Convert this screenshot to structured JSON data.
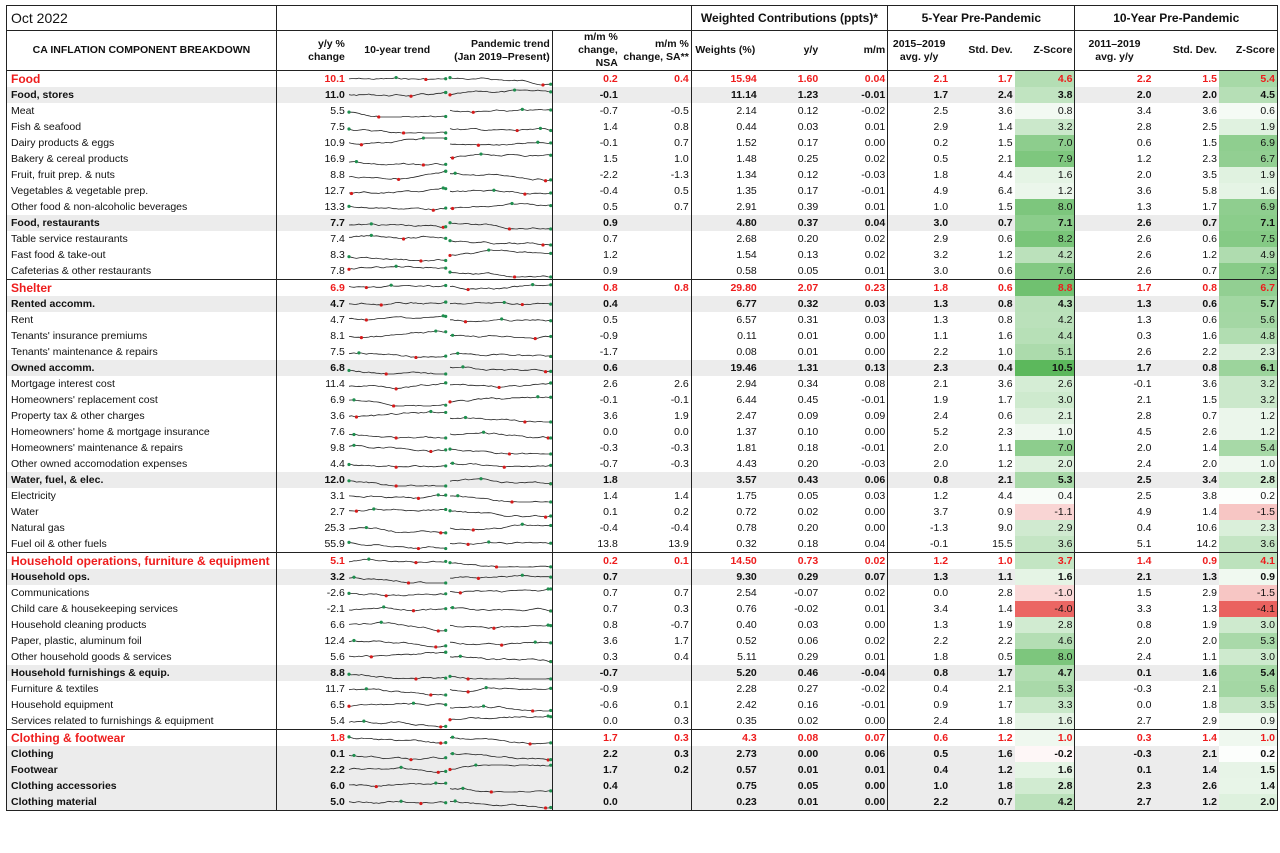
{
  "title": "Oct 2022",
  "header_groups": {
    "weighted": "Weighted Contributions (ppts)*",
    "five_year": "5-Year Pre-Pandemic",
    "ten_year": "10-Year Pre-Pandemic"
  },
  "columns": {
    "component": "CA INFLATION COMPONENT BREAKDOWN",
    "yy": "y/y % change",
    "trend10": "10-year trend",
    "trend_pandemic": "Pandemic trend (Jan 2019–Present)",
    "mm_nsa": "m/m % change, NSA",
    "mm_sa": "m/m % change, SA**",
    "weights": "Weights (%)",
    "wc_yy": "y/y",
    "wc_mm": "m/m",
    "avg5": "2015–2019 avg. y/y",
    "sd5": "Std. Dev.",
    "z5": "Z-Score",
    "avg10": "2011–2019 avg. y/y",
    "sd10": "Std. Dev.",
    "z10": "Z-Score"
  },
  "rows": [
    {
      "label": "Food",
      "level": 0,
      "v": [
        "10.1",
        "0.2",
        "0.4",
        "15.94",
        "1.60",
        "0.04",
        "2.1",
        "1.7",
        "4.6",
        "2.2",
        "1.5",
        "5.4"
      ]
    },
    {
      "label": "Food, stores",
      "level": 1,
      "v": [
        "11.0",
        "-0.1",
        "",
        "11.14",
        "1.23",
        "-0.01",
        "1.7",
        "2.4",
        "3.8",
        "2.0",
        "2.0",
        "4.5"
      ]
    },
    {
      "label": "Meat",
      "level": 2,
      "v": [
        "5.5",
        "-0.7",
        "-0.5",
        "2.14",
        "0.12",
        "-0.02",
        "2.5",
        "3.6",
        "0.8",
        "3.4",
        "3.6",
        "0.6"
      ]
    },
    {
      "label": "Fish & seafood",
      "level": 2,
      "v": [
        "7.5",
        "1.4",
        "0.8",
        "0.44",
        "0.03",
        "0.01",
        "2.9",
        "1.4",
        "3.2",
        "2.8",
        "2.5",
        "1.9"
      ]
    },
    {
      "label": "Dairy products & eggs",
      "level": 2,
      "v": [
        "10.9",
        "-0.1",
        "0.7",
        "1.52",
        "0.17",
        "0.00",
        "0.2",
        "1.5",
        "7.0",
        "0.6",
        "1.5",
        "6.9"
      ]
    },
    {
      "label": "Bakery & cereal products",
      "level": 2,
      "v": [
        "16.9",
        "1.5",
        "1.0",
        "1.48",
        "0.25",
        "0.02",
        "0.5",
        "2.1",
        "7.9",
        "1.2",
        "2.3",
        "6.7"
      ]
    },
    {
      "label": "Fruit, fruit prep. & nuts",
      "level": 2,
      "v": [
        "8.8",
        "-2.2",
        "-1.3",
        "1.34",
        "0.12",
        "-0.03",
        "1.8",
        "4.4",
        "1.6",
        "2.0",
        "3.5",
        "1.9"
      ]
    },
    {
      "label": "Vegetables & vegetable prep.",
      "level": 2,
      "v": [
        "12.7",
        "-0.4",
        "0.5",
        "1.35",
        "0.17",
        "-0.01",
        "4.9",
        "6.4",
        "1.2",
        "3.6",
        "5.8",
        "1.6"
      ]
    },
    {
      "label": "Other food & non-alcoholic beverages",
      "level": 2,
      "v": [
        "13.3",
        "0.5",
        "0.7",
        "2.91",
        "0.39",
        "0.01",
        "1.0",
        "1.5",
        "8.0",
        "1.3",
        "1.7",
        "6.9"
      ]
    },
    {
      "label": "Food, restaurants",
      "level": 1,
      "v": [
        "7.7",
        "0.9",
        "",
        "4.80",
        "0.37",
        "0.04",
        "3.0",
        "0.7",
        "7.1",
        "2.6",
        "0.7",
        "7.1"
      ]
    },
    {
      "label": "Table service restaurants",
      "level": 2,
      "v": [
        "7.4",
        "0.7",
        "",
        "2.68",
        "0.20",
        "0.02",
        "2.9",
        "0.6",
        "8.2",
        "2.6",
        "0.6",
        "7.5"
      ]
    },
    {
      "label": "Fast food & take-out",
      "level": 2,
      "v": [
        "8.3",
        "1.2",
        "",
        "1.54",
        "0.13",
        "0.02",
        "3.2",
        "1.2",
        "4.2",
        "2.6",
        "1.2",
        "4.9"
      ]
    },
    {
      "label": "Cafeterias & other restaurants",
      "level": 2,
      "v": [
        "7.8",
        "0.9",
        "",
        "0.58",
        "0.05",
        "0.01",
        "3.0",
        "0.6",
        "7.6",
        "2.6",
        "0.7",
        "7.3"
      ]
    },
    {
      "label": "Shelter",
      "level": 0,
      "v": [
        "6.9",
        "0.8",
        "0.8",
        "29.80",
        "2.07",
        "0.23",
        "1.8",
        "0.6",
        "8.8",
        "1.7",
        "0.8",
        "6.7"
      ]
    },
    {
      "label": "Rented accomm.",
      "level": 1,
      "v": [
        "4.7",
        "0.4",
        "",
        "6.77",
        "0.32",
        "0.03",
        "1.3",
        "0.8",
        "4.3",
        "1.3",
        "0.6",
        "5.7"
      ]
    },
    {
      "label": "Rent",
      "level": 2,
      "v": [
        "4.7",
        "0.5",
        "",
        "6.57",
        "0.31",
        "0.03",
        "1.3",
        "0.8",
        "4.2",
        "1.3",
        "0.6",
        "5.6"
      ]
    },
    {
      "label": "Tenants' insurance premiums",
      "level": 2,
      "v": [
        "8.1",
        "-0.9",
        "",
        "0.11",
        "0.01",
        "0.00",
        "1.1",
        "1.6",
        "4.4",
        "0.3",
        "1.6",
        "4.8"
      ]
    },
    {
      "label": "Tenants' maintenance & repairs",
      "level": 2,
      "v": [
        "7.5",
        "-1.7",
        "",
        "0.08",
        "0.01",
        "0.00",
        "2.2",
        "1.0",
        "5.1",
        "2.6",
        "2.2",
        "2.3"
      ]
    },
    {
      "label": "Owned accomm.",
      "level": 1,
      "v": [
        "6.8",
        "0.6",
        "",
        "19.46",
        "1.31",
        "0.13",
        "2.3",
        "0.4",
        "10.5",
        "1.7",
        "0.8",
        "6.1"
      ]
    },
    {
      "label": "Mortgage interest cost",
      "level": 2,
      "v": [
        "11.4",
        "2.6",
        "2.6",
        "2.94",
        "0.34",
        "0.08",
        "2.1",
        "3.6",
        "2.6",
        "-0.1",
        "3.6",
        "3.2"
      ]
    },
    {
      "label": "Homeowners' replacement cost",
      "level": 2,
      "v": [
        "6.9",
        "-0.1",
        "-0.1",
        "6.44",
        "0.45",
        "-0.01",
        "1.9",
        "1.7",
        "3.0",
        "2.1",
        "1.5",
        "3.2"
      ]
    },
    {
      "label": "Property tax & other charges",
      "level": 2,
      "v": [
        "3.6",
        "3.6",
        "1.9",
        "2.47",
        "0.09",
        "0.09",
        "2.4",
        "0.6",
        "2.1",
        "2.8",
        "0.7",
        "1.2"
      ]
    },
    {
      "label": "Homeowners' home & mortgage insurance",
      "level": 2,
      "v": [
        "7.6",
        "0.0",
        "0.0",
        "1.37",
        "0.10",
        "0.00",
        "5.2",
        "2.3",
        "1.0",
        "4.5",
        "2.6",
        "1.2"
      ]
    },
    {
      "label": "Homeowners' maintenance & repairs",
      "level": 2,
      "v": [
        "9.8",
        "-0.3",
        "-0.3",
        "1.81",
        "0.18",
        "-0.01",
        "2.0",
        "1.1",
        "7.0",
        "2.0",
        "1.4",
        "5.4"
      ]
    },
    {
      "label": "Other owned accomodation expenses",
      "level": 2,
      "v": [
        "4.4",
        "-0.7",
        "-0.3",
        "4.43",
        "0.20",
        "-0.03",
        "2.0",
        "1.2",
        "2.0",
        "2.4",
        "2.0",
        "1.0"
      ]
    },
    {
      "label": "Water, fuel, & elec.",
      "level": 1,
      "v": [
        "12.0",
        "1.8",
        "",
        "3.57",
        "0.43",
        "0.06",
        "0.8",
        "2.1",
        "5.3",
        "2.5",
        "3.4",
        "2.8"
      ]
    },
    {
      "label": "Electricity",
      "level": 2,
      "v": [
        "3.1",
        "1.4",
        "1.4",
        "1.75",
        "0.05",
        "0.03",
        "1.2",
        "4.4",
        "0.4",
        "2.5",
        "3.8",
        "0.2"
      ]
    },
    {
      "label": "Water",
      "level": 2,
      "v": [
        "2.7",
        "0.1",
        "0.2",
        "0.72",
        "0.02",
        "0.00",
        "3.7",
        "0.9",
        "-1.1",
        "4.9",
        "1.4",
        "-1.5"
      ]
    },
    {
      "label": "Natural gas",
      "level": 2,
      "v": [
        "25.3",
        "-0.4",
        "-0.4",
        "0.78",
        "0.20",
        "0.00",
        "-1.3",
        "9.0",
        "2.9",
        "0.4",
        "10.6",
        "2.3"
      ]
    },
    {
      "label": "Fuel oil & other fuels",
      "level": 2,
      "v": [
        "55.9",
        "13.8",
        "13.9",
        "0.32",
        "0.18",
        "0.04",
        "-0.1",
        "15.5",
        "3.6",
        "5.1",
        "14.2",
        "3.6"
      ]
    },
    {
      "label": "Household operations, furniture & equipment",
      "level": 0,
      "v": [
        "5.1",
        "0.2",
        "0.1",
        "14.50",
        "0.73",
        "0.02",
        "1.2",
        "1.0",
        "3.7",
        "1.4",
        "0.9",
        "4.1"
      ]
    },
    {
      "label": "Household ops.",
      "level": 1,
      "v": [
        "3.2",
        "0.7",
        "",
        "9.30",
        "0.29",
        "0.07",
        "1.3",
        "1.1",
        "1.6",
        "2.1",
        "1.3",
        "0.9"
      ]
    },
    {
      "label": "Communications",
      "level": 2,
      "v": [
        "-2.6",
        "0.7",
        "0.7",
        "2.54",
        "-0.07",
        "0.02",
        "0.0",
        "2.8",
        "-1.0",
        "1.5",
        "2.9",
        "-1.5"
      ]
    },
    {
      "label": "Child care & housekeeping services",
      "level": 2,
      "v": [
        "-2.1",
        "0.7",
        "0.3",
        "0.76",
        "-0.02",
        "0.01",
        "3.4",
        "1.4",
        "-4.0",
        "3.3",
        "1.3",
        "-4.1"
      ]
    },
    {
      "label": "Household cleaning products",
      "level": 2,
      "v": [
        "6.6",
        "0.8",
        "-0.7",
        "0.40",
        "0.03",
        "0.00",
        "1.3",
        "1.9",
        "2.8",
        "0.8",
        "1.9",
        "3.0"
      ]
    },
    {
      "label": "Paper, plastic, aluminum foil",
      "level": 2,
      "v": [
        "12.4",
        "3.6",
        "1.7",
        "0.52",
        "0.06",
        "0.02",
        "2.2",
        "2.2",
        "4.6",
        "2.0",
        "2.0",
        "5.3"
      ]
    },
    {
      "label": "Other household goods & services",
      "level": 2,
      "v": [
        "5.6",
        "0.3",
        "0.4",
        "5.11",
        "0.29",
        "0.01",
        "1.8",
        "0.5",
        "8.0",
        "2.4",
        "1.1",
        "3.0"
      ]
    },
    {
      "label": "Household furnishings & equip.",
      "level": 1,
      "v": [
        "8.8",
        "-0.7",
        "",
        "5.20",
        "0.46",
        "-0.04",
        "0.8",
        "1.7",
        "4.7",
        "0.1",
        "1.6",
        "5.4"
      ]
    },
    {
      "label": "Furniture & textiles",
      "level": 2,
      "v": [
        "11.7",
        "-0.9",
        "",
        "2.28",
        "0.27",
        "-0.02",
        "0.4",
        "2.1",
        "5.3",
        "-0.3",
        "2.1",
        "5.6"
      ]
    },
    {
      "label": "Household equipment",
      "level": 2,
      "v": [
        "6.5",
        "-0.6",
        "0.1",
        "2.42",
        "0.16",
        "-0.01",
        "0.9",
        "1.7",
        "3.3",
        "0.0",
        "1.8",
        "3.5"
      ]
    },
    {
      "label": "Services related to furnishings & equipment",
      "level": 2,
      "v": [
        "5.4",
        "0.0",
        "0.3",
        "0.35",
        "0.02",
        "0.00",
        "2.4",
        "1.8",
        "1.6",
        "2.7",
        "2.9",
        "0.9"
      ]
    },
    {
      "label": "Clothing & footwear",
      "level": 0,
      "v": [
        "1.8",
        "1.7",
        "0.3",
        "4.3",
        "0.08",
        "0.07",
        "0.6",
        "1.2",
        "1.0",
        "0.3",
        "1.4",
        "1.0"
      ]
    },
    {
      "label": "Clothing",
      "level": 1,
      "v": [
        "0.1",
        "2.2",
        "0.3",
        "2.73",
        "0.00",
        "0.06",
        "0.5",
        "1.6",
        "-0.2",
        "-0.3",
        "2.1",
        "0.2"
      ]
    },
    {
      "label": "Footwear",
      "level": 1,
      "v": [
        "2.2",
        "1.7",
        "0.2",
        "0.57",
        "0.01",
        "0.01",
        "0.4",
        "1.2",
        "1.6",
        "0.1",
        "1.4",
        "1.5"
      ]
    },
    {
      "label": "Clothing accessories",
      "level": 1,
      "v": [
        "6.0",
        "0.4",
        "",
        "0.75",
        "0.05",
        "0.00",
        "1.0",
        "1.8",
        "2.8",
        "2.3",
        "2.6",
        "1.4"
      ]
    },
    {
      "label": "Clothing material",
      "level": 1,
      "v": [
        "5.0",
        "0.0",
        "",
        "0.23",
        "0.01",
        "0.00",
        "2.2",
        "0.7",
        "4.2",
        "2.7",
        "1.2",
        "2.0"
      ]
    }
  ],
  "colors": {
    "heading_red": "#ee1c1c",
    "subtotal_bg": "#ececec",
    "z_positive": "#5cb85c",
    "z_negative": "#e8534f",
    "spark_line": "#222222",
    "spark_high": "#1e8f4e",
    "spark_low": "#d61a1a"
  }
}
